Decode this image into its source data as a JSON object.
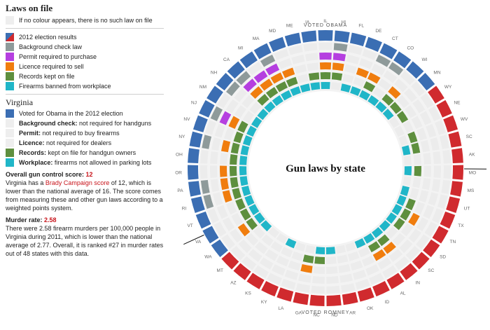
{
  "legend": {
    "title": "Laws on file",
    "no_colour_note": "If no colour appears, there is no such law on file",
    "items": [
      {
        "key": "election",
        "label": "2012 election results"
      },
      {
        "key": "background",
        "label": "Background check law",
        "color": "#8e9a9a"
      },
      {
        "key": "permit",
        "label": "Permit required to purchase",
        "color": "#b53fe0"
      },
      {
        "key": "licence",
        "label": "Licence required to sell",
        "color": "#f07d0e"
      },
      {
        "key": "records",
        "label": "Records kept on file",
        "color": "#5e8f3e"
      },
      {
        "key": "workplace",
        "label": "Firearms banned from workplace",
        "color": "#20b6c8"
      }
    ]
  },
  "state_panel": {
    "name": "Virginia",
    "rows": [
      {
        "key": "vote",
        "bold": "",
        "text": "Voted for Obama in the 2012 election"
      },
      {
        "key": "background",
        "bold": "Background check:",
        "text": " not required for handguns"
      },
      {
        "key": "permit",
        "bold": "Permit:",
        "text": " not required to buy firearms"
      },
      {
        "key": "licence",
        "bold": "Licence:",
        "text": " not required for dealers"
      },
      {
        "key": "records",
        "bold": "Records:",
        "text": " kept on file for handgun owners"
      },
      {
        "key": "workplace",
        "bold": "Workplace:",
        "text": " firearms not allowed in parking lots"
      }
    ],
    "gun_score_label": "Overall gun control score:",
    "gun_score_value": "12",
    "gun_text_1": "Virginia has a ",
    "gun_link": "Brady Campaign score",
    "gun_text_2": " of 12, which is lower than the national average of 16. The score comes from measuring these and other gun laws according to a weighted points system.",
    "murder_label": "Murder rate:",
    "murder_value": "2.58",
    "murder_text": "There were 2.58 firearm murders per 100,000 people in Virginia during 2011, which is lower than the national average of 2.77. Overall, it is ranked #27 in murder rates out of 48 states with this data."
  },
  "chart_data": {
    "type": "radial",
    "title": "Gun laws by state",
    "top_label": "VOTED OBAMA",
    "bottom_label": "VOTED ROMNEY",
    "colors": {
      "obama": "#3b6eb3",
      "romney": "#d02a2e",
      "background": "#8e9a9a",
      "permit": "#b53fe0",
      "licence": "#f07d0e",
      "records": "#5e8f3e",
      "workplace": "#20b6c8",
      "empty": "#eeeeee"
    },
    "layers_inner_to_outer": [
      "workplace",
      "records",
      "licence",
      "permit",
      "background"
    ],
    "states": [
      {
        "code": "CA",
        "vote": "obama",
        "laws": [
          "background",
          "permit",
          "licence",
          "records",
          "workplace"
        ]
      },
      {
        "code": "MI",
        "vote": "obama",
        "laws": [
          "permit",
          "licence",
          "records",
          "workplace"
        ]
      },
      {
        "code": "MA",
        "vote": "obama",
        "laws": [
          "background",
          "permit",
          "licence",
          "records",
          "workplace"
        ]
      },
      {
        "code": "MD",
        "vote": "obama",
        "laws": [
          "licence",
          "records",
          "workplace"
        ]
      },
      {
        "code": "ME",
        "vote": "obama",
        "laws": [
          "workplace"
        ]
      },
      {
        "code": "IA",
        "vote": "obama",
        "laws": [
          "records",
          "workplace"
        ]
      },
      {
        "code": "IL",
        "vote": "obama",
        "laws": [
          "permit",
          "licence",
          "records",
          "workplace"
        ]
      },
      {
        "code": "HI",
        "vote": "obama",
        "laws": [
          "background",
          "permit",
          "licence",
          "records"
        ]
      },
      {
        "code": "FL",
        "vote": "obama",
        "laws": [
          "workplace"
        ]
      },
      {
        "code": "DE",
        "vote": "obama",
        "laws": [
          "licence",
          "workplace"
        ]
      },
      {
        "code": "CT",
        "vote": "obama",
        "laws": [
          "background",
          "licence",
          "records",
          "workplace"
        ]
      },
      {
        "code": "CO",
        "vote": "obama",
        "laws": [
          "background",
          "workplace"
        ]
      },
      {
        "code": "WI",
        "vote": "obama",
        "laws": [
          "licence",
          "records",
          "workplace"
        ]
      },
      {
        "code": "MN",
        "vote": "obama",
        "laws": [
          "records",
          "workplace"
        ]
      },
      {
        "code": "WY",
        "vote": "romney",
        "laws": [
          "records"
        ]
      },
      {
        "code": "NE",
        "vote": "romney",
        "laws": []
      },
      {
        "code": "WV",
        "vote": "romney",
        "laws": [
          "records"
        ]
      },
      {
        "code": "SC",
        "vote": "romney",
        "laws": [
          "records",
          "workplace"
        ]
      },
      {
        "code": "AK",
        "vote": "romney",
        "laws": []
      },
      {
        "code": "MO",
        "vote": "romney",
        "laws": [
          "records",
          "workplace"
        ]
      },
      {
        "code": "MS",
        "vote": "romney",
        "laws": []
      },
      {
        "code": "UT",
        "vote": "romney",
        "laws": [
          "workplace"
        ]
      },
      {
        "code": "TX",
        "vote": "romney",
        "laws": [
          "records",
          "workplace"
        ]
      },
      {
        "code": "TN",
        "vote": "romney",
        "laws": [
          "licence",
          "records",
          "workplace"
        ]
      },
      {
        "code": "SD",
        "vote": "romney",
        "laws": [
          "records",
          "workplace"
        ]
      },
      {
        "code": "SC2",
        "label": "SC",
        "vote": "romney",
        "laws": [
          "workplace"
        ]
      },
      {
        "code": "IN",
        "vote": "romney",
        "laws": [
          "licence",
          "records",
          "workplace"
        ]
      },
      {
        "code": "AL",
        "vote": "romney",
        "laws": [
          "licence",
          "records",
          "workplace"
        ]
      },
      {
        "code": "ID",
        "vote": "romney",
        "laws": [
          "workplace"
        ]
      },
      {
        "code": "OK",
        "vote": "romney",
        "laws": []
      },
      {
        "code": "AR",
        "vote": "romney",
        "laws": []
      },
      {
        "code": "ND",
        "vote": "romney",
        "laws": [
          "workplace"
        ]
      },
      {
        "code": "NC",
        "vote": "romney",
        "laws": [
          "records",
          "workplace"
        ]
      },
      {
        "code": "GA",
        "vote": "romney",
        "laws": [
          "licence",
          "records"
        ]
      },
      {
        "code": "LA",
        "vote": "romney",
        "laws": []
      },
      {
        "code": "KY",
        "vote": "romney",
        "laws": [
          "workplace"
        ]
      },
      {
        "code": "KS",
        "vote": "romney",
        "laws": []
      },
      {
        "code": "AZ",
        "vote": "romney",
        "laws": []
      },
      {
        "code": "MT",
        "vote": "romney",
        "laws": [
          "workplace"
        ]
      },
      {
        "code": "WA",
        "vote": "obama",
        "laws": [
          "licence",
          "records",
          "workplace"
        ]
      },
      {
        "code": "VA",
        "vote": "obama",
        "laws": [
          "records",
          "workplace"
        ]
      },
      {
        "code": "VT",
        "vote": "obama",
        "laws": [
          "records",
          "workplace"
        ]
      },
      {
        "code": "RI",
        "vote": "obama",
        "laws": [
          "background",
          "licence",
          "records",
          "workplace"
        ]
      },
      {
        "code": "PA",
        "vote": "obama",
        "laws": [
          "background",
          "licence",
          "records",
          "workplace"
        ]
      },
      {
        "code": "OR",
        "vote": "obama",
        "laws": [
          "licence",
          "records",
          "workplace"
        ]
      },
      {
        "code": "OH",
        "vote": "obama",
        "laws": [
          "records",
          "workplace"
        ]
      },
      {
        "code": "NY",
        "vote": "obama",
        "laws": [
          "background",
          "licence",
          "records",
          "workplace"
        ]
      },
      {
        "code": "NV",
        "vote": "obama",
        "laws": [
          "records",
          "workplace"
        ]
      },
      {
        "code": "NJ",
        "vote": "obama",
        "laws": [
          "background",
          "permit",
          "licence",
          "records",
          "workplace"
        ]
      },
      {
        "code": "NM",
        "vote": "obama",
        "laws": [
          "workplace"
        ]
      },
      {
        "code": "NH",
        "vote": "obama",
        "laws": [
          "background",
          "workplace"
        ]
      }
    ]
  }
}
